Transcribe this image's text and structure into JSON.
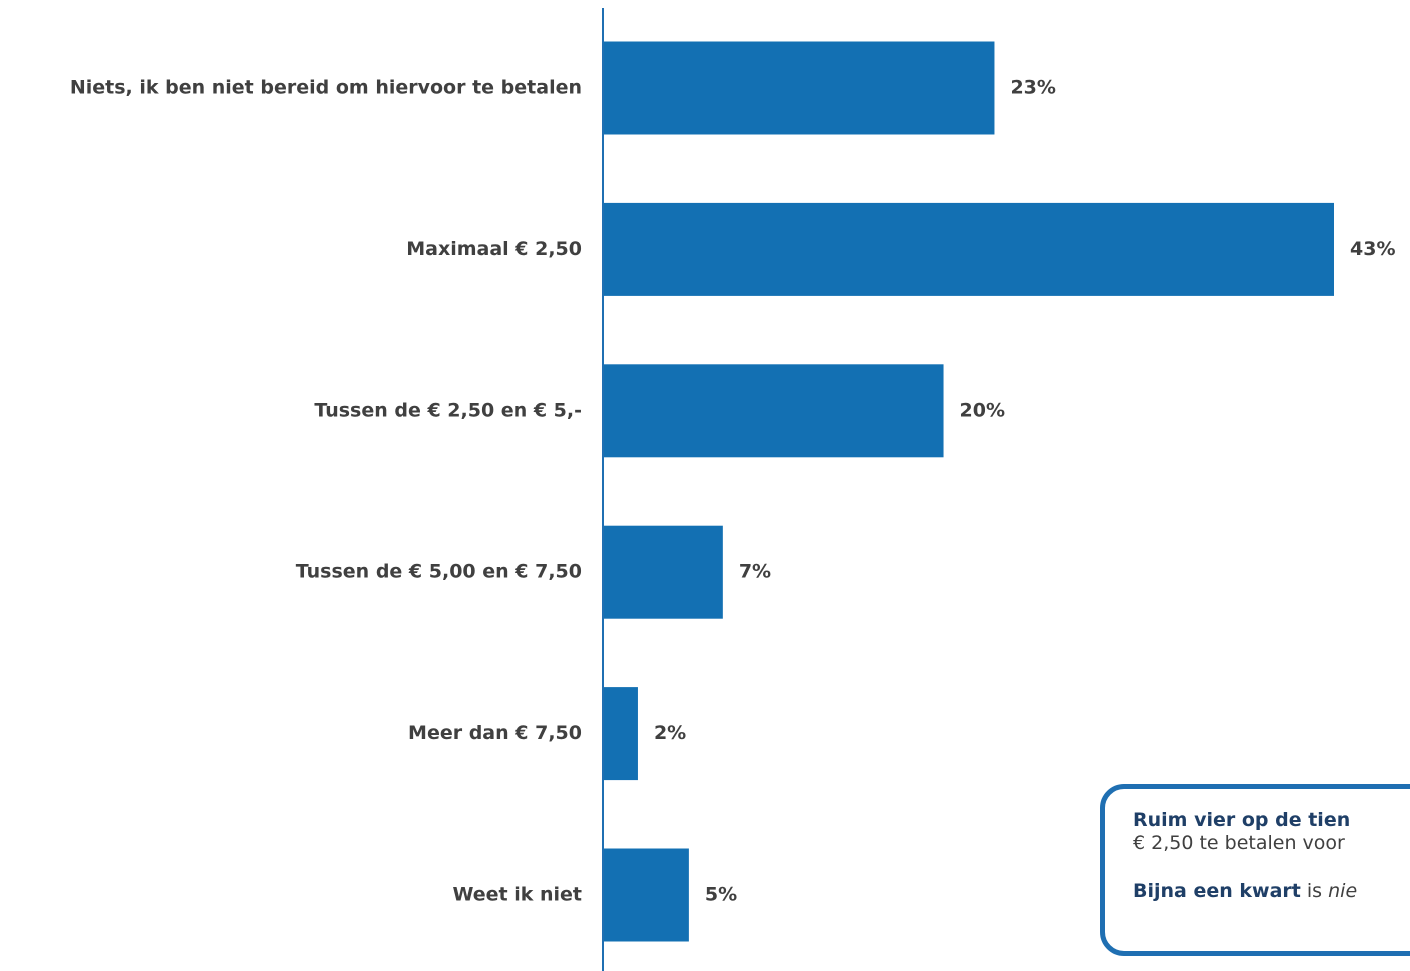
{
  "chart_data": {
    "type": "bar",
    "orientation": "horizontal",
    "categories": [
      "Niets, ik ben niet bereid om hiervoor te betalen",
      "Maximaal € 2,50",
      "Tussen de € 2,50 en € 5,-",
      "Tussen de € 5,00 en € 7,50",
      "Meer dan € 7,50",
      "Weet ik niet"
    ],
    "values": [
      23,
      43,
      20,
      7,
      2,
      5
    ],
    "value_labels": [
      "23%",
      "43%",
      "20%",
      "7%",
      "2%",
      "5%"
    ],
    "unit": "%",
    "xlim": [
      0,
      43
    ],
    "bar_color": "#1370b3",
    "grid": false,
    "legend": "none"
  },
  "callout": {
    "line1_bold": "Ruim vier op de tien",
    "line2": "€ 2,50 te betalen voor",
    "line3_bold": "Bijna een kwart",
    "line3_text": " is ",
    "line3_italic": "nie"
  },
  "colors": {
    "bar": "#1370b3",
    "axis": "#1f6fb2",
    "text": "#404040",
    "callout_border": "#1f6fb2",
    "callout_heading": "#1f3f67"
  }
}
